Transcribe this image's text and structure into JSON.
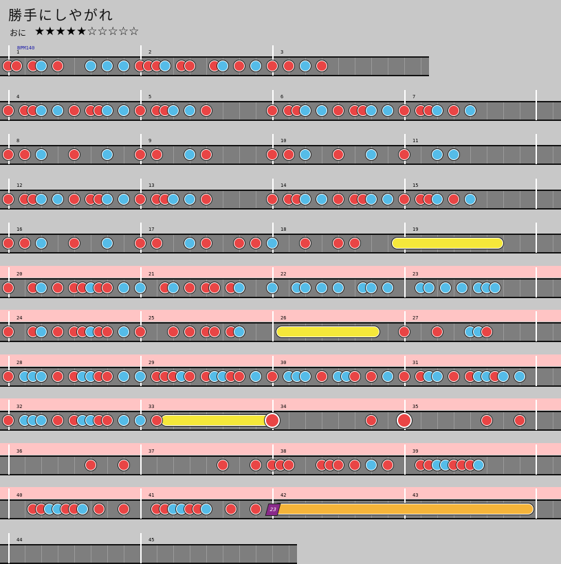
{
  "song": {
    "title": "勝手にしやがれ",
    "difficulty_label": "おに",
    "stars": "★★★★★☆☆☆☆☆",
    "bpm_label": "BPM140"
  },
  "colors": {
    "don": "#e94545",
    "ka": "#55bce8",
    "roll": "#f5e83a",
    "gogo": "#ffc4c4"
  },
  "rows": [
    {
      "measures": [
        "1",
        "2",
        "3"
      ],
      "full": false,
      "gogo": false,
      "notes": [
        [
          "d",
          0
        ],
        [
          "d",
          1
        ],
        [
          "d",
          3
        ],
        [
          "k",
          4
        ],
        [
          "d",
          6
        ],
        [
          "k",
          10
        ],
        [
          "k",
          12
        ],
        [
          "k",
          14
        ],
        [
          "d",
          16
        ],
        [
          "d",
          17
        ],
        [
          "d",
          18
        ],
        [
          "k",
          19
        ],
        [
          "d",
          21
        ],
        [
          "d",
          22
        ],
        [
          "d",
          25
        ],
        [
          "k",
          26
        ],
        [
          "d",
          28
        ],
        [
          "k",
          30
        ],
        [
          "d",
          32
        ],
        [
          "d",
          34
        ],
        [
          "k",
          36
        ],
        [
          "d",
          38
        ]
      ],
      "rolls": [],
      "big": []
    },
    {
      "measures": [
        "4",
        "5",
        "6",
        "7"
      ],
      "full": true,
      "gogo": false,
      "notes": [
        [
          "d",
          0
        ],
        [
          "d",
          2
        ],
        [
          "d",
          3
        ],
        [
          "k",
          4
        ],
        [
          "k",
          6
        ],
        [
          "d",
          8
        ],
        [
          "d",
          10
        ],
        [
          "d",
          11
        ],
        [
          "k",
          12
        ],
        [
          "k",
          14
        ],
        [
          "d",
          16
        ],
        [
          "d",
          18
        ],
        [
          "d",
          19
        ],
        [
          "k",
          20
        ],
        [
          "k",
          22
        ],
        [
          "d",
          24
        ],
        [
          "d",
          32
        ],
        [
          "d",
          34
        ],
        [
          "d",
          35
        ],
        [
          "k",
          36
        ],
        [
          "k",
          38
        ],
        [
          "d",
          40
        ],
        [
          "d",
          42
        ],
        [
          "d",
          43
        ],
        [
          "k",
          44
        ],
        [
          "k",
          46
        ],
        [
          "d",
          48
        ],
        [
          "d",
          50
        ],
        [
          "d",
          51
        ],
        [
          "k",
          52
        ],
        [
          "d",
          54
        ],
        [
          "k",
          56
        ]
      ],
      "rolls": [],
      "big": []
    },
    {
      "measures": [
        "8",
        "9",
        "10",
        "11"
      ],
      "full": true,
      "gogo": false,
      "notes": [
        [
          "d",
          0
        ],
        [
          "d",
          2
        ],
        [
          "k",
          4
        ],
        [
          "d",
          8
        ],
        [
          "k",
          12
        ],
        [
          "d",
          16
        ],
        [
          "d",
          18
        ],
        [
          "k",
          22
        ],
        [
          "d",
          24
        ],
        [
          "d",
          32
        ],
        [
          "d",
          34
        ],
        [
          "k",
          36
        ],
        [
          "d",
          40
        ],
        [
          "k",
          44
        ],
        [
          "d",
          48
        ],
        [
          "k",
          52
        ],
        [
          "k",
          54
        ]
      ],
      "rolls": [],
      "big": []
    },
    {
      "measures": [
        "12",
        "13",
        "14",
        "15"
      ],
      "full": true,
      "gogo": false,
      "notes": [
        [
          "d",
          0
        ],
        [
          "d",
          2
        ],
        [
          "d",
          3
        ],
        [
          "k",
          4
        ],
        [
          "k",
          6
        ],
        [
          "d",
          8
        ],
        [
          "d",
          10
        ],
        [
          "d",
          11
        ],
        [
          "k",
          12
        ],
        [
          "k",
          14
        ],
        [
          "d",
          16
        ],
        [
          "d",
          18
        ],
        [
          "d",
          19
        ],
        [
          "k",
          20
        ],
        [
          "k",
          22
        ],
        [
          "d",
          24
        ],
        [
          "d",
          32
        ],
        [
          "d",
          34
        ],
        [
          "d",
          35
        ],
        [
          "k",
          36
        ],
        [
          "k",
          38
        ],
        [
          "d",
          40
        ],
        [
          "d",
          42
        ],
        [
          "d",
          43
        ],
        [
          "k",
          44
        ],
        [
          "k",
          46
        ],
        [
          "d",
          48
        ],
        [
          "d",
          50
        ],
        [
          "d",
          51
        ],
        [
          "k",
          52
        ],
        [
          "d",
          54
        ],
        [
          "k",
          56
        ]
      ],
      "rolls": [],
      "big": []
    },
    {
      "measures": [
        "16",
        "17",
        "18",
        "19"
      ],
      "full": true,
      "gogo": false,
      "notes": [
        [
          "d",
          0
        ],
        [
          "d",
          2
        ],
        [
          "k",
          4
        ],
        [
          "d",
          8
        ],
        [
          "k",
          12
        ],
        [
          "d",
          16
        ],
        [
          "d",
          18
        ],
        [
          "k",
          22
        ],
        [
          "d",
          24
        ],
        [
          "d",
          28
        ],
        [
          "d",
          30
        ],
        [
          "k",
          32
        ],
        [
          "d",
          36
        ],
        [
          "d",
          40
        ],
        [
          "d",
          42
        ]
      ],
      "rolls": [
        [
          46,
          59
        ]
      ],
      "big": []
    },
    {
      "measures": [
        "20",
        "21",
        "22",
        "23"
      ],
      "full": true,
      "gogo": true,
      "notes": [
        [
          "d",
          0
        ],
        [
          "d",
          3
        ],
        [
          "k",
          4
        ],
        [
          "d",
          6
        ],
        [
          "d",
          8
        ],
        [
          "d",
          9
        ],
        [
          "k",
          10
        ],
        [
          "d",
          11
        ],
        [
          "d",
          12
        ],
        [
          "k",
          14
        ],
        [
          "k",
          16
        ],
        [
          "d",
          19
        ],
        [
          "k",
          20
        ],
        [
          "d",
          22
        ],
        [
          "d",
          24
        ],
        [
          "d",
          25
        ],
        [
          "d",
          27
        ],
        [
          "k",
          28
        ],
        [
          "k",
          32
        ],
        [
          "k",
          35
        ],
        [
          "k",
          36
        ],
        [
          "k",
          38
        ],
        [
          "k",
          40
        ],
        [
          "k",
          43
        ],
        [
          "k",
          44
        ],
        [
          "k",
          46
        ],
        [
          "k",
          50
        ],
        [
          "k",
          51
        ],
        [
          "k",
          53
        ],
        [
          "k",
          55
        ],
        [
          "k",
          57
        ],
        [
          "k",
          58
        ],
        [
          "k",
          59
        ]
      ],
      "rolls": [],
      "big": []
    },
    {
      "measures": [
        "24",
        "25",
        "26",
        "27"
      ],
      "full": true,
      "gogo": true,
      "notes": [
        [
          "d",
          0
        ],
        [
          "d",
          3
        ],
        [
          "k",
          4
        ],
        [
          "d",
          6
        ],
        [
          "d",
          8
        ],
        [
          "d",
          9
        ],
        [
          "k",
          10
        ],
        [
          "d",
          11
        ],
        [
          "d",
          12
        ],
        [
          "k",
          14
        ],
        [
          "d",
          16
        ],
        [
          "d",
          20
        ],
        [
          "d",
          22
        ],
        [
          "d",
          24
        ],
        [
          "d",
          25
        ],
        [
          "d",
          27
        ],
        [
          "k",
          28
        ],
        [
          "d",
          48
        ],
        [
          "d",
          52
        ],
        [
          "k",
          56
        ],
        [
          "k",
          57
        ],
        [
          "d",
          58
        ]
      ],
      "rolls": [
        [
          32,
          44
        ]
      ],
      "big": []
    },
    {
      "measures": [
        "28",
        "29",
        "30",
        "31"
      ],
      "full": true,
      "gogo": true,
      "notes": [
        [
          "d",
          0
        ],
        [
          "k",
          2
        ],
        [
          "k",
          3
        ],
        [
          "k",
          4
        ],
        [
          "d",
          6
        ],
        [
          "d",
          8
        ],
        [
          "k",
          9
        ],
        [
          "k",
          10
        ],
        [
          "d",
          11
        ],
        [
          "d",
          12
        ],
        [
          "k",
          14
        ],
        [
          "k",
          16
        ],
        [
          "d",
          18
        ],
        [
          "d",
          19
        ],
        [
          "d",
          20
        ],
        [
          "k",
          21
        ],
        [
          "d",
          22
        ],
        [
          "d",
          24
        ],
        [
          "k",
          25
        ],
        [
          "k",
          26
        ],
        [
          "d",
          27
        ],
        [
          "d",
          28
        ],
        [
          "k",
          30
        ],
        [
          "d",
          32
        ],
        [
          "k",
          34
        ],
        [
          "k",
          35
        ],
        [
          "k",
          36
        ],
        [
          "d",
          38
        ],
        [
          "k",
          40
        ],
        [
          "k",
          41
        ],
        [
          "d",
          42
        ],
        [
          "d",
          44
        ],
        [
          "k",
          46
        ],
        [
          "d",
          48
        ],
        [
          "d",
          50
        ],
        [
          "k",
          51
        ],
        [
          "k",
          52
        ],
        [
          "d",
          54
        ],
        [
          "d",
          56
        ],
        [
          "k",
          57
        ],
        [
          "k",
          58
        ],
        [
          "d",
          59
        ],
        [
          "k",
          60
        ],
        [
          "k",
          62
        ]
      ],
      "rolls": [],
      "big": []
    },
    {
      "measures": [
        "32",
        "33",
        "34",
        "35"
      ],
      "full": true,
      "gogo": true,
      "notes": [
        [
          "d",
          0
        ],
        [
          "k",
          2
        ],
        [
          "k",
          3
        ],
        [
          "k",
          4
        ],
        [
          "d",
          6
        ],
        [
          "d",
          8
        ],
        [
          "k",
          9
        ],
        [
          "k",
          10
        ],
        [
          "d",
          11
        ],
        [
          "d",
          12
        ],
        [
          "k",
          14
        ],
        [
          "k",
          16
        ],
        [
          "d",
          18
        ],
        [
          "d",
          44
        ],
        [
          "d",
          58
        ],
        [
          "d",
          62
        ]
      ],
      "rolls": [
        [
          18,
          31
        ]
      ],
      "big": [
        32,
        48
      ]
    },
    {
      "measures": [
        "36",
        "37",
        "38",
        "39"
      ],
      "full": true,
      "gogo": true,
      "notes": [
        [
          "d",
          10
        ],
        [
          "d",
          14
        ],
        [
          "d",
          26
        ],
        [
          "d",
          30
        ],
        [
          "d",
          32
        ],
        [
          "d",
          33
        ],
        [
          "d",
          34
        ],
        [
          "d",
          38
        ],
        [
          "d",
          39
        ],
        [
          "d",
          40
        ],
        [
          "d",
          42
        ],
        [
          "k",
          44
        ],
        [
          "d",
          46
        ],
        [
          "d",
          50
        ],
        [
          "d",
          51
        ],
        [
          "k",
          52
        ],
        [
          "k",
          53
        ],
        [
          "d",
          54
        ],
        [
          "d",
          55
        ],
        [
          "d",
          56
        ],
        [
          "k",
          57
        ]
      ],
      "rolls": [],
      "big": []
    },
    {
      "measures": [
        "40",
        "41",
        "42",
        "43"
      ],
      "full": true,
      "gogo": true,
      "notes": [
        [
          "d",
          3
        ],
        [
          "d",
          4
        ],
        [
          "k",
          5
        ],
        [
          "k",
          6
        ],
        [
          "d",
          7
        ],
        [
          "d",
          8
        ],
        [
          "k",
          9
        ],
        [
          "d",
          11
        ],
        [
          "d",
          14
        ],
        [
          "d",
          18
        ],
        [
          "d",
          19
        ],
        [
          "k",
          20
        ],
        [
          "k",
          21
        ],
        [
          "d",
          22
        ],
        [
          "d",
          23
        ],
        [
          "k",
          24
        ],
        [
          "d",
          27
        ],
        [
          "d",
          30
        ]
      ],
      "rolls": [],
      "orange_roll": [
        32,
        64
      ],
      "balloon": {
        "pos": 32,
        "count": "23"
      },
      "big": []
    },
    {
      "measures": [
        "44",
        "45"
      ],
      "full": false,
      "short": true,
      "gogo": false,
      "notes": [],
      "rolls": [],
      "big": []
    }
  ]
}
